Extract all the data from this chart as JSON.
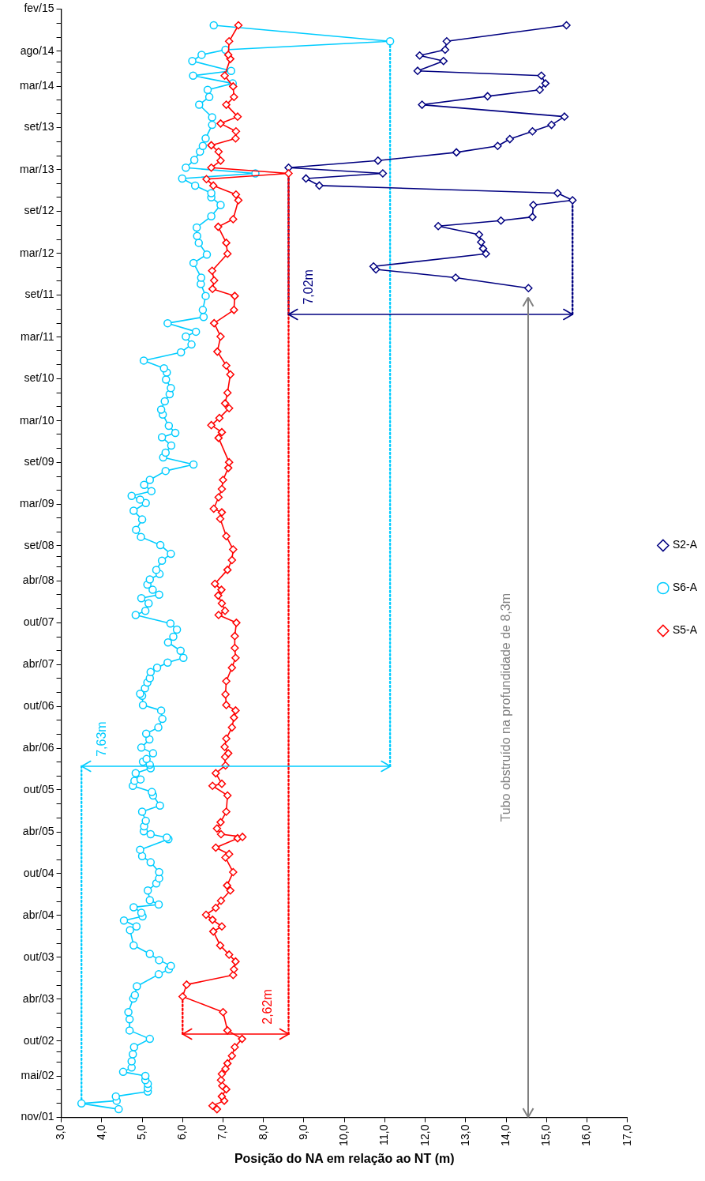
{
  "chart_data": {
    "type": "line",
    "orientation": "horizontal",
    "xlabel": "Posição do NA em relação ao NT (m)",
    "legend": "right",
    "ylim": [
      "2001-11-01",
      "2015-02-01"
    ],
    "yticks": [
      {
        "value": "2001-11-01",
        "label": "nov/01"
      },
      {
        "value": "2002-01-01",
        "label": null
      },
      {
        "value": "2002-03-01",
        "label": null
      },
      {
        "value": "2002-05-01",
        "label": "mai/02"
      },
      {
        "value": "2002-07-01",
        "label": null
      },
      {
        "value": "2002-08-16",
        "label": null
      },
      {
        "value": "2002-10-01",
        "label": "out/02"
      },
      {
        "value": "2002-12-01",
        "label": null
      },
      {
        "value": "2003-02-01",
        "label": null
      },
      {
        "value": "2003-04-01",
        "label": "abr/03"
      },
      {
        "value": "2003-06-01",
        "label": null
      },
      {
        "value": "2003-08-01",
        "label": null
      },
      {
        "value": "2003-10-01",
        "label": "out/03"
      },
      {
        "value": "2003-12-01",
        "label": null
      },
      {
        "value": "2004-02-01",
        "label": null
      },
      {
        "value": "2004-04-01",
        "label": "abr/04"
      },
      {
        "value": "2004-06-01",
        "label": null
      },
      {
        "value": "2004-08-01",
        "label": null
      },
      {
        "value": "2004-10-01",
        "label": "out/04"
      },
      {
        "value": "2004-12-01",
        "label": null
      },
      {
        "value": "2005-02-01",
        "label": null
      },
      {
        "value": "2005-04-01",
        "label": "abr/05"
      },
      {
        "value": "2005-06-01",
        "label": null
      },
      {
        "value": "2005-08-01",
        "label": null
      },
      {
        "value": "2005-10-01",
        "label": "out/05"
      },
      {
        "value": "2005-12-01",
        "label": null
      },
      {
        "value": "2006-02-01",
        "label": null
      },
      {
        "value": "2006-04-01",
        "label": "abr/06"
      },
      {
        "value": "2006-06-01",
        "label": null
      },
      {
        "value": "2006-08-01",
        "label": null
      },
      {
        "value": "2006-10-01",
        "label": "out/06"
      },
      {
        "value": "2006-12-01",
        "label": null
      },
      {
        "value": "2007-02-01",
        "label": null
      },
      {
        "value": "2007-04-01",
        "label": "abr/07"
      },
      {
        "value": "2007-06-01",
        "label": null
      },
      {
        "value": "2007-08-01",
        "label": null
      },
      {
        "value": "2007-10-01",
        "label": "out/07"
      },
      {
        "value": "2007-12-01",
        "label": null
      },
      {
        "value": "2008-02-01",
        "label": null
      },
      {
        "value": "2008-04-01",
        "label": "abr/08"
      },
      {
        "value": "2008-06-01",
        "label": null
      },
      {
        "value": "2008-07-16",
        "label": null
      },
      {
        "value": "2008-09-01",
        "label": "set/08"
      },
      {
        "value": "2008-11-01",
        "label": null
      },
      {
        "value": "2009-01-01",
        "label": null
      },
      {
        "value": "2009-03-01",
        "label": "mar/09"
      },
      {
        "value": "2009-05-01",
        "label": null
      },
      {
        "value": "2009-07-01",
        "label": null
      },
      {
        "value": "2009-09-01",
        "label": "set/09"
      },
      {
        "value": "2009-11-01",
        "label": null
      },
      {
        "value": "2010-01-01",
        "label": null
      },
      {
        "value": "2010-03-01",
        "label": "mar/10"
      },
      {
        "value": "2010-05-01",
        "label": null
      },
      {
        "value": "2010-07-01",
        "label": null
      },
      {
        "value": "2010-09-01",
        "label": "set/10"
      },
      {
        "value": "2010-11-01",
        "label": null
      },
      {
        "value": "2011-01-01",
        "label": null
      },
      {
        "value": "2011-03-01",
        "label": "mar/11"
      },
      {
        "value": "2011-05-01",
        "label": null
      },
      {
        "value": "2011-07-01",
        "label": null
      },
      {
        "value": "2011-09-01",
        "label": "set/11"
      },
      {
        "value": "2011-11-01",
        "label": null
      },
      {
        "value": "2012-01-01",
        "label": null
      },
      {
        "value": "2012-03-01",
        "label": "mar/12"
      },
      {
        "value": "2012-05-01",
        "label": null
      },
      {
        "value": "2012-07-01",
        "label": null
      },
      {
        "value": "2012-09-01",
        "label": "set/12"
      },
      {
        "value": "2012-11-01",
        "label": null
      },
      {
        "value": "2013-01-01",
        "label": null
      },
      {
        "value": "2013-03-01",
        "label": "mar/13"
      },
      {
        "value": "2013-05-01",
        "label": null
      },
      {
        "value": "2013-07-01",
        "label": null
      },
      {
        "value": "2013-09-01",
        "label": "set/13"
      },
      {
        "value": "2013-11-01",
        "label": null
      },
      {
        "value": "2014-01-01",
        "label": null
      },
      {
        "value": "2014-03-01",
        "label": "mar/14"
      },
      {
        "value": "2014-05-01",
        "label": null
      },
      {
        "value": "2014-06-16",
        "label": null
      },
      {
        "value": "2014-08-01",
        "label": "ago/14"
      },
      {
        "value": "2014-10-01",
        "label": null
      },
      {
        "value": "2014-12-01",
        "label": null
      },
      {
        "value": "2015-02-01",
        "label": "fev/15"
      }
    ],
    "xlim": [
      3,
      17
    ],
    "xticks": [
      {
        "value": 3,
        "label": "3,0"
      },
      {
        "value": 4,
        "label": "4,0"
      },
      {
        "value": 5,
        "label": "5,0"
      },
      {
        "value": 6,
        "label": "6,0"
      },
      {
        "value": 7,
        "label": "7,0"
      },
      {
        "value": 8,
        "label": "8,0"
      },
      {
        "value": 9,
        "label": "9,0"
      },
      {
        "value": 10,
        "label": "10,0"
      },
      {
        "value": 11,
        "label": "11,0"
      },
      {
        "value": 12,
        "label": "12,0"
      },
      {
        "value": 13,
        "label": "13,0"
      },
      {
        "value": 14,
        "label": "14,0"
      },
      {
        "value": 15,
        "label": "15,0"
      },
      {
        "value": 16,
        "label": "16,0"
      },
      {
        "value": 17,
        "label": "17,0"
      }
    ],
    "annotations": [
      "7,63m",
      "2,62m",
      "7,02m",
      "Tubo obstruído na profundidade de 8,3m"
    ],
    "series": [
      {
        "name": "S5-A",
        "type": "line",
        "color": "#ff0000",
        "marker": "diamond",
        "x": [
          "2001-12-07",
          "2001-12-22",
          "2002-01-13",
          "2002-02-01",
          "2002-03-04",
          "2002-03-19",
          "2002-04-13",
          "2002-05-10",
          "2002-06-01",
          "2002-06-25",
          "2002-07-28",
          "2002-09-04",
          "2002-10-10",
          "2002-11-16",
          "2003-02-04",
          "2003-04-13",
          "2003-06-04",
          "2003-07-16",
          "2003-08-10",
          "2003-09-13",
          "2003-10-13",
          "2003-11-22",
          "2004-01-22",
          "2004-02-13",
          "2004-03-13",
          "2004-04-04",
          "2004-05-04",
          "2004-06-04",
          "2004-07-19",
          "2004-08-10",
          "2004-10-07",
          "2004-12-10",
          "2004-12-25",
          "2005-01-22",
          "2005-03-04",
          "2005-03-10",
          "2005-03-22",
          "2005-04-16",
          "2005-05-13",
          "2005-06-28",
          "2005-09-07",
          "2005-10-19",
          "2005-10-28",
          "2005-12-13",
          "2006-01-16",
          "2006-02-22",
          "2006-03-10",
          "2006-04-07",
          "2006-05-13",
          "2006-07-01",
          "2006-08-13",
          "2006-09-13",
          "2006-10-07",
          "2006-11-22",
          "2007-01-19",
          "2007-03-19",
          "2007-05-01",
          "2007-06-13",
          "2007-08-04",
          "2007-10-01",
          "2007-11-04",
          "2007-11-22",
          "2007-12-25",
          "2008-01-28",
          "2008-02-22",
          "2008-03-19",
          "2008-05-19",
          "2008-07-01",
          "2008-08-16",
          "2008-10-13",
          "2008-12-28",
          "2009-01-25",
          "2009-02-10",
          "2009-04-01",
          "2009-05-07",
          "2009-06-16",
          "2009-08-07",
          "2009-09-01",
          "2009-12-16",
          "2010-01-10",
          "2010-02-10",
          "2010-03-13",
          "2010-04-25",
          "2010-05-16",
          "2010-07-01",
          "2010-09-19",
          "2010-10-28",
          "2010-12-28",
          "2011-03-04",
          "2011-05-01",
          "2011-06-28",
          "2011-08-28",
          "2011-09-28",
          "2011-11-04",
          "2011-12-16",
          "2012-02-28",
          "2012-04-16",
          "2012-06-25",
          "2012-07-28",
          "2012-10-19",
          "2012-11-13",
          "2012-12-22",
          "2013-01-19",
          "2013-02-13",
          "2013-03-10",
          "2013-04-10",
          "2013-05-19",
          "2013-06-16",
          "2013-07-16",
          "2013-08-16",
          "2013-09-19",
          "2013-10-19",
          "2013-12-10",
          "2014-01-13",
          "2014-02-28",
          "2014-04-16",
          "2014-06-28",
          "2014-07-16",
          "2014-09-13",
          "2014-11-22"
        ],
        "values": [
          6.85,
          6.74,
          7.03,
          6.97,
          7.08,
          6.98,
          6.95,
          6.97,
          7.06,
          7.11,
          7.22,
          7.29,
          7.47,
          7.11,
          7.0,
          6.0,
          6.1,
          7.25,
          7.27,
          7.31,
          7.15,
          6.93,
          6.76,
          6.97,
          6.74,
          6.58,
          6.82,
          6.95,
          7.18,
          7.1,
          7.25,
          7.06,
          7.15,
          6.82,
          7.36,
          7.48,
          6.95,
          6.85,
          6.94,
          7.08,
          7.11,
          6.74,
          6.97,
          6.82,
          7.06,
          7.05,
          7.13,
          7.04,
          7.08,
          7.22,
          7.27,
          7.31,
          7.08,
          7.06,
          7.08,
          7.22,
          7.31,
          7.29,
          7.29,
          7.33,
          6.89,
          7.05,
          6.97,
          6.88,
          6.96,
          6.8,
          7.11,
          7.22,
          7.25,
          7.08,
          6.93,
          6.97,
          6.77,
          6.89,
          6.97,
          7.0,
          7.13,
          7.15,
          6.89,
          6.97,
          6.71,
          6.91,
          7.15,
          7.05,
          7.11,
          7.18,
          7.08,
          6.86,
          6.94,
          6.78,
          7.27,
          7.29,
          6.74,
          6.78,
          6.73,
          7.11,
          7.08,
          6.88,
          7.25,
          7.38,
          7.32,
          6.76,
          6.59,
          8.62,
          6.71,
          6.94,
          6.89,
          6.71,
          7.31,
          7.32,
          6.94,
          7.36,
          7.08,
          7.27,
          7.25,
          7.04,
          7.18,
          7.13,
          7.15,
          7.38
        ]
      },
      {
        "name": "S6-A",
        "type": "line",
        "color": "#00ccff",
        "marker": "circle",
        "x": [
          "2001-12-07",
          "2002-01-01",
          "2002-01-13",
          "2002-02-01",
          "2002-02-22",
          "2002-03-10",
          "2002-03-28",
          "2002-04-13",
          "2002-05-01",
          "2002-05-19",
          "2002-06-07",
          "2002-07-04",
          "2002-08-04",
          "2002-09-04",
          "2002-10-10",
          "2002-11-16",
          "2003-01-04",
          "2003-02-04",
          "2003-04-04",
          "2003-04-19",
          "2003-05-28",
          "2003-07-19",
          "2003-08-10",
          "2003-08-25",
          "2003-09-19",
          "2003-10-16",
          "2003-11-22",
          "2004-01-28",
          "2004-02-13",
          "2004-03-10",
          "2004-03-28",
          "2004-04-13",
          "2004-05-07",
          "2004-05-19",
          "2004-06-07",
          "2004-07-19",
          "2004-08-19",
          "2004-09-10",
          "2004-10-07",
          "2004-11-19",
          "2004-12-16",
          "2005-01-13",
          "2005-02-28",
          "2005-03-07",
          "2005-03-22",
          "2005-04-04",
          "2005-04-25",
          "2005-05-19",
          "2005-06-28",
          "2005-07-25",
          "2005-09-07",
          "2005-09-22",
          "2005-10-19",
          "2005-11-10",
          "2005-11-16",
          "2005-12-13",
          "2006-01-04",
          "2006-01-19",
          "2006-02-01",
          "2006-02-13",
          "2006-03-10",
          "2006-04-04",
          "2006-05-10",
          "2006-06-04",
          "2006-07-01",
          "2006-08-07",
          "2006-09-13",
          "2006-10-07",
          "2006-11-16",
          "2006-11-25",
          "2006-12-19",
          "2007-01-13",
          "2007-02-01",
          "2007-02-28",
          "2007-03-19",
          "2007-04-10",
          "2007-05-01",
          "2007-06-01",
          "2007-07-07",
          "2007-08-01",
          "2007-09-01",
          "2007-09-28",
          "2007-11-04",
          "2007-11-22",
          "2007-12-25",
          "2008-01-16",
          "2008-02-01",
          "2008-02-22",
          "2008-03-16",
          "2008-04-07",
          "2008-05-01",
          "2008-05-19",
          "2008-06-28",
          "2008-07-28",
          "2008-09-04",
          "2008-10-10",
          "2008-11-10",
          "2008-12-25",
          "2009-02-01",
          "2009-03-07",
          "2009-03-22",
          "2009-04-07",
          "2009-04-28",
          "2009-05-25",
          "2009-06-16",
          "2009-07-25",
          "2009-08-22",
          "2009-09-22",
          "2009-10-13",
          "2009-11-13",
          "2009-12-19",
          "2010-01-07",
          "2010-02-07",
          "2010-03-28",
          "2010-04-19",
          "2010-05-25",
          "2010-06-25",
          "2010-07-22",
          "2010-08-28",
          "2010-09-28",
          "2010-10-16",
          "2010-11-19",
          "2010-12-25",
          "2011-01-28",
          "2011-03-04",
          "2011-03-25",
          "2011-05-01",
          "2011-05-28",
          "2011-06-28",
          "2011-08-28",
          "2011-10-19",
          "2011-11-16",
          "2012-01-19",
          "2012-02-25",
          "2012-04-16",
          "2012-05-16",
          "2012-06-22",
          "2012-08-10",
          "2012-09-28",
          "2012-11-01",
          "2012-11-19",
          "2012-12-22",
          "2013-01-22",
          "2013-02-13",
          "2013-03-10",
          "2013-04-13",
          "2013-05-19",
          "2013-06-13",
          "2013-07-16",
          "2013-09-13",
          "2013-10-16",
          "2013-12-10",
          "2014-01-13",
          "2014-02-13",
          "2014-03-13",
          "2014-04-16",
          "2014-05-07",
          "2014-06-19",
          "2014-07-16",
          "2014-08-07",
          "2014-09-13",
          "2014-11-22"
        ],
        "values": [
          4.42,
          3.5,
          4.37,
          4.35,
          5.14,
          5.14,
          5.14,
          5.08,
          5.08,
          4.53,
          4.74,
          4.74,
          4.77,
          4.8,
          5.19,
          4.69,
          4.69,
          4.66,
          4.78,
          4.82,
          4.87,
          5.41,
          5.66,
          5.71,
          5.42,
          5.19,
          4.79,
          4.7,
          4.86,
          4.55,
          5.01,
          4.98,
          4.79,
          5.41,
          5.19,
          5.14,
          5.35,
          5.42,
          5.42,
          5.21,
          5.0,
          4.95,
          5.65,
          5.61,
          5.21,
          5.04,
          5.05,
          5.09,
          5.0,
          5.44,
          5.27,
          5.24,
          4.77,
          4.81,
          4.96,
          4.84,
          5.21,
          5.19,
          5.02,
          5.11,
          5.27,
          4.98,
          5.18,
          5.1,
          5.4,
          5.5,
          5.47,
          5.02,
          5.0,
          4.95,
          5.07,
          5.13,
          5.19,
          5.21,
          5.37,
          5.63,
          6.02,
          5.95,
          5.64,
          5.77,
          5.86,
          5.7,
          4.84,
          5.08,
          5.16,
          4.98,
          5.42,
          5.26,
          5.13,
          5.19,
          5.43,
          5.35,
          5.49,
          5.71,
          5.45,
          4.97,
          4.85,
          5.0,
          4.79,
          5.09,
          4.95,
          4.74,
          5.23,
          5.05,
          5.19,
          5.58,
          6.27,
          5.52,
          5.58,
          5.72,
          5.49,
          5.82,
          5.66,
          5.51,
          5.47,
          5.56,
          5.68,
          5.71,
          5.59,
          5.61,
          5.54,
          5.04,
          5.96,
          6.22,
          6.08,
          6.33,
          5.63,
          6.52,
          6.5,
          6.57,
          6.45,
          6.46,
          6.27,
          6.6,
          6.4,
          6.36,
          6.35,
          6.71,
          6.94,
          6.71,
          6.71,
          6.31,
          5.99,
          7.8,
          6.08,
          6.29,
          6.43,
          6.5,
          6.57,
          6.73,
          6.73,
          6.41,
          6.66,
          6.62,
          7.24,
          6.26,
          7.2,
          6.24,
          6.47,
          7.06,
          11.13,
          6.77
        ]
      },
      {
        "name": "S2-A",
        "type": "line",
        "color": "#000080",
        "marker": "diamond",
        "x": [
          "2011-10-01",
          "2011-11-16",
          "2011-12-22",
          "2012-01-04",
          "2012-02-28",
          "2012-03-22",
          "2012-04-19",
          "2012-05-22",
          "2012-06-28",
          "2012-07-22",
          "2012-08-07",
          "2012-09-28",
          "2012-10-19",
          "2012-11-19",
          "2012-12-22",
          "2013-01-22",
          "2013-02-13",
          "2013-03-10",
          "2013-04-10",
          "2013-05-16",
          "2013-06-13",
          "2013-07-13",
          "2013-08-16",
          "2013-09-13",
          "2013-10-19",
          "2013-12-10",
          "2014-01-16",
          "2014-02-13",
          "2014-03-13",
          "2014-04-16",
          "2014-05-07",
          "2014-06-19",
          "2014-07-13",
          "2014-08-07",
          "2014-09-13",
          "2014-11-22"
        ],
        "values": [
          14.55,
          12.75,
          10.78,
          10.72,
          13.5,
          13.43,
          13.38,
          13.33,
          12.32,
          13.87,
          14.65,
          14.67,
          15.64,
          15.27,
          9.38,
          9.05,
          10.95,
          8.62,
          10.83,
          12.77,
          13.79,
          14.09,
          14.65,
          15.12,
          15.44,
          11.92,
          13.54,
          14.83,
          14.97,
          14.87,
          11.81,
          12.45,
          11.86,
          12.49,
          12.53,
          15.49
        ]
      },
      {
        "type": "line",
        "color": "#00ccff",
        "marker": "none",
        "line_style": "dotted",
        "x": [
          "2002-01-01",
          "2006-01-13"
        ],
        "values": [
          3.5,
          3.5
        ]
      },
      {
        "type": "line",
        "color": "#00ccff",
        "marker": "none",
        "line_style": "dotted",
        "x": [
          "2006-01-13",
          "2014-09-13"
        ],
        "values": [
          11.13,
          11.13
        ]
      },
      {
        "type": "line",
        "color": "#ff0000",
        "marker": "none",
        "line_style": "dotted",
        "x": [
          "2002-11-01",
          "2013-02-13"
        ],
        "values": [
          8.62,
          8.62
        ]
      },
      {
        "type": "line",
        "color": "#ff0000",
        "marker": "none",
        "line_style": "dotted",
        "x": [
          "2002-11-01",
          "2003-04-13"
        ],
        "values": [
          6.0,
          6.0
        ]
      },
      {
        "type": "line",
        "color": "#000080",
        "marker": "none",
        "line_style": "dotted",
        "x": [
          "2011-06-10",
          "2013-03-10"
        ],
        "values": [
          8.62,
          8.62
        ]
      },
      {
        "type": "line",
        "color": "#000080",
        "marker": "none",
        "line_style": "dotted",
        "x": [
          "2011-06-10",
          "2012-10-19"
        ],
        "values": [
          15.64,
          15.64
        ]
      }
    ]
  }
}
